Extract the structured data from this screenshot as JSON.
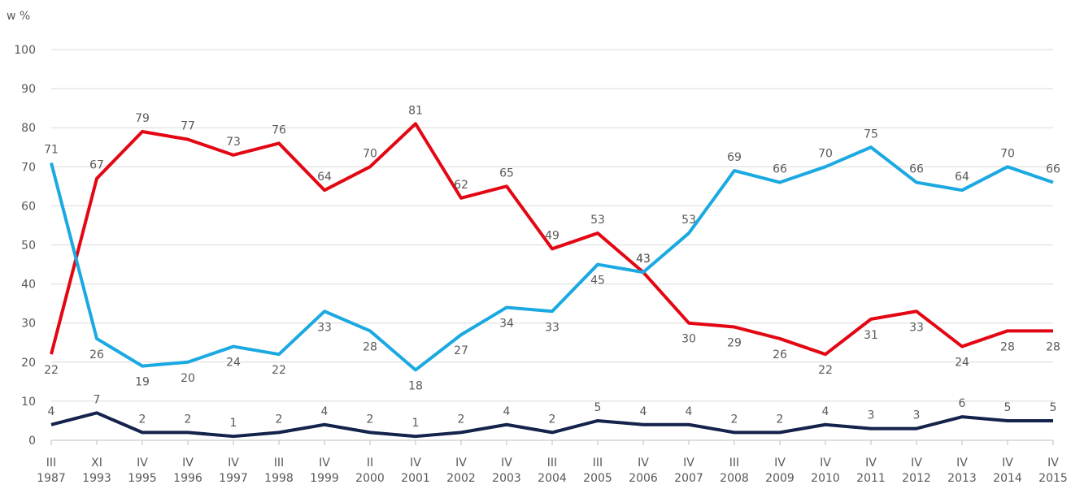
{
  "chart_data": {
    "type": "line",
    "y_label": "w %",
    "categories": [
      "III\n1987",
      "XI\n1993",
      "IV\n1995",
      "IV\n1996",
      "IV\n1997",
      "III\n1998",
      "IV\n1999",
      "II\n2000",
      "IV\n2001",
      "IV\n2002",
      "IV\n2003",
      "III\n2004",
      "III\n2005",
      "IV\n2006",
      "IV\n2007",
      "III\n2008",
      "IV\n2009",
      "IV\n2010",
      "IV\n2011",
      "IV\n2012",
      "IV\n2013",
      "IV\n2014",
      "IV\n2015"
    ],
    "series": [
      {
        "color": "#e30613",
        "values": [
          22,
          67,
          79,
          77,
          73,
          76,
          64,
          70,
          81,
          62,
          65,
          49,
          53,
          43,
          30,
          29,
          26,
          22,
          31,
          33,
          24,
          28,
          28
        ]
      },
      {
        "color": "#1ba9e1",
        "values": [
          71,
          26,
          19,
          20,
          24,
          22,
          33,
          28,
          18,
          27,
          34,
          33,
          45,
          43,
          53,
          69,
          66,
          70,
          75,
          66,
          64,
          70,
          66
        ]
      },
      {
        "color": "#14234b",
        "values": [
          4,
          7,
          2,
          2,
          1,
          2,
          4,
          2,
          1,
          2,
          4,
          2,
          5,
          4,
          4,
          2,
          2,
          4,
          3,
          3,
          6,
          5,
          5
        ]
      }
    ],
    "ylim": [
      0,
      100
    ],
    "yticks": [
      0,
      10,
      20,
      30,
      40,
      50,
      60,
      70,
      80,
      90,
      100
    ],
    "grid": true
  }
}
